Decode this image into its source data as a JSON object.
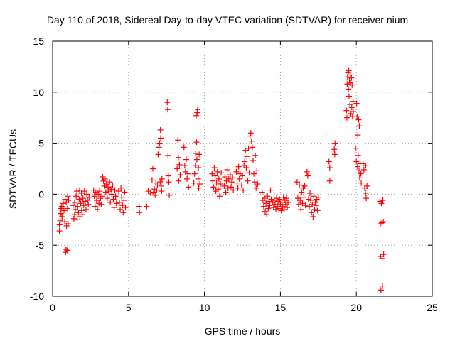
{
  "chart_data": {
    "type": "scatter",
    "title": "Day 110 of 2018, Sidereal Day-to-day VTEC variation (SDTVAR) for receiver nium",
    "xlabel": "GPS time / hours",
    "ylabel": "SDTVAR / TECUs",
    "xlim": [
      0,
      25
    ],
    "ylim": [
      -10,
      15
    ],
    "xticks": [
      0,
      5,
      10,
      15,
      20,
      25
    ],
    "yticks": [
      -10,
      -5,
      0,
      5,
      10,
      15
    ],
    "x_tick_labels": [
      "0",
      "5",
      "10",
      "15",
      "20",
      "25"
    ],
    "y_tick_labels": [
      "-10",
      "-5",
      "0",
      "5",
      "10",
      "15"
    ],
    "grid": true,
    "marker": "+",
    "series": [
      {
        "name": "SDTVAR",
        "color": "#ff0000",
        "points": [
          [
            0.45,
            -3.6
          ],
          [
            0.45,
            -3.0
          ],
          [
            0.5,
            -2.6
          ],
          [
            0.55,
            -1.9
          ],
          [
            0.55,
            -1.4
          ],
          [
            0.6,
            -1.2
          ],
          [
            0.62,
            -2.2
          ],
          [
            0.7,
            -0.9
          ],
          [
            0.75,
            -1.6
          ],
          [
            0.8,
            -2.7
          ],
          [
            0.82,
            -0.5
          ],
          [
            0.85,
            -5.7
          ],
          [
            0.88,
            -5.4
          ],
          [
            0.9,
            -0.8
          ],
          [
            0.92,
            -3.1
          ],
          [
            0.95,
            -5.5
          ],
          [
            0.98,
            -1.4
          ],
          [
            1.0,
            -0.2
          ],
          [
            1.02,
            -2.9
          ],
          [
            1.05,
            -0.6
          ],
          [
            1.35,
            -1.1
          ],
          [
            1.4,
            -2.4
          ],
          [
            1.45,
            -0.8
          ],
          [
            1.45,
            -2.0
          ],
          [
            1.5,
            -1.5
          ],
          [
            1.55,
            -0.2
          ],
          [
            1.6,
            0.3
          ],
          [
            1.62,
            -2.5
          ],
          [
            1.65,
            -1.2
          ],
          [
            1.7,
            -1.8
          ],
          [
            1.75,
            -0.5
          ],
          [
            1.78,
            0.4
          ],
          [
            1.8,
            -2.2
          ],
          [
            1.85,
            -0.9
          ],
          [
            1.9,
            0.1
          ],
          [
            1.92,
            -1.6
          ],
          [
            1.95,
            -2.0
          ],
          [
            2.0,
            -0.4
          ],
          [
            2.05,
            -1.1
          ],
          [
            2.1,
            0.3
          ],
          [
            2.15,
            -0.7
          ],
          [
            2.2,
            -1.5
          ],
          [
            2.25,
            0.0
          ],
          [
            2.3,
            -0.6
          ],
          [
            2.35,
            -1.0
          ],
          [
            2.4,
            -0.3
          ],
          [
            2.7,
            0.4
          ],
          [
            2.75,
            -0.2
          ],
          [
            2.8,
            -1.2
          ],
          [
            2.85,
            0.2
          ],
          [
            2.9,
            -0.6
          ],
          [
            2.95,
            -1.5
          ],
          [
            3.0,
            0.0
          ],
          [
            3.05,
            -0.9
          ],
          [
            3.1,
            0.3
          ],
          [
            3.15,
            -0.4
          ],
          [
            3.2,
            -1.0
          ],
          [
            3.25,
            -0.2
          ],
          [
            3.3,
            1.7
          ],
          [
            3.35,
            1.3
          ],
          [
            3.4,
            0.8
          ],
          [
            3.45,
            1.5
          ],
          [
            3.5,
            0.2
          ],
          [
            3.55,
            1.0
          ],
          [
            3.6,
            -0.4
          ],
          [
            3.65,
            0.7
          ],
          [
            3.7,
            0.3
          ],
          [
            3.75,
            1.2
          ],
          [
            3.8,
            -0.8
          ],
          [
            3.85,
            0.5
          ],
          [
            3.9,
            0.0
          ],
          [
            3.95,
            0.9
          ],
          [
            4.0,
            -0.5
          ],
          [
            4.05,
            -1.3
          ],
          [
            4.1,
            0.4
          ],
          [
            4.15,
            -0.2
          ],
          [
            4.2,
            -0.9
          ],
          [
            4.35,
            0.3
          ],
          [
            4.4,
            -0.8
          ],
          [
            4.45,
            -1.5
          ],
          [
            4.5,
            0.6
          ],
          [
            4.55,
            -0.3
          ],
          [
            4.6,
            -1.1
          ],
          [
            4.65,
            -1.8
          ],
          [
            4.7,
            -0.6
          ],
          [
            4.75,
            0.2
          ],
          [
            4.8,
            -1.3
          ],
          [
            5.7,
            -1.2
          ],
          [
            5.72,
            -1.8
          ],
          [
            6.2,
            -1.2
          ],
          [
            6.3,
            0.3
          ],
          [
            6.45,
            0.1
          ],
          [
            6.55,
            1.4
          ],
          [
            6.6,
            2.5
          ],
          [
            6.65,
            0.2
          ],
          [
            6.7,
            0.5
          ],
          [
            6.75,
            -0.1
          ],
          [
            6.8,
            1.1
          ],
          [
            6.85,
            0.4
          ],
          [
            6.9,
            0.9
          ],
          [
            6.95,
            3.9
          ],
          [
            7.0,
            4.6
          ],
          [
            7.05,
            5.0
          ],
          [
            7.08,
            1.2
          ],
          [
            7.1,
            6.3
          ],
          [
            7.12,
            5.5
          ],
          [
            7.15,
            0.8
          ],
          [
            7.18,
            0.3
          ],
          [
            7.2,
            1.5
          ],
          [
            7.55,
            9.0
          ],
          [
            7.58,
            8.3
          ],
          [
            7.6,
            3.8
          ],
          [
            7.62,
            1.8
          ],
          [
            7.65,
            1.2
          ],
          [
            7.68,
            -0.1
          ],
          [
            8.2,
            2.5
          ],
          [
            8.25,
            5.3
          ],
          [
            8.28,
            3.6
          ],
          [
            8.3,
            1.3
          ],
          [
            8.35,
            2.9
          ],
          [
            8.4,
            1.9
          ],
          [
            8.65,
            4.6
          ],
          [
            8.7,
            2.8
          ],
          [
            8.75,
            2.2
          ],
          [
            8.8,
            3.4
          ],
          [
            8.85,
            1.5
          ],
          [
            8.9,
            2.0
          ],
          [
            8.95,
            0.7
          ],
          [
            9.3,
            1.1
          ],
          [
            9.35,
            2.0
          ],
          [
            9.4,
            2.8
          ],
          [
            9.42,
            4.0
          ],
          [
            9.45,
            7.7
          ],
          [
            9.48,
            5.1
          ],
          [
            9.5,
            3.4
          ],
          [
            9.52,
            8.0
          ],
          [
            9.55,
            8.3
          ],
          [
            9.58,
            1.5
          ],
          [
            9.6,
            2.6
          ],
          [
            9.62,
            0.6
          ],
          [
            9.65,
            3.9
          ],
          [
            9.7,
            1.0
          ],
          [
            10.5,
            2.0
          ],
          [
            10.55,
            1.3
          ],
          [
            10.6,
            0.7
          ],
          [
            10.65,
            2.6
          ],
          [
            10.7,
            1.8
          ],
          [
            10.75,
            0.3
          ],
          [
            10.8,
            1.1
          ],
          [
            10.85,
            2.2
          ],
          [
            10.9,
            0.5
          ],
          [
            10.95,
            1.5
          ],
          [
            11.0,
            -0.2
          ],
          [
            11.05,
            1.0
          ],
          [
            11.1,
            2.1
          ],
          [
            11.3,
            0.8
          ],
          [
            11.35,
            1.7
          ],
          [
            11.4,
            0.2
          ],
          [
            11.45,
            1.3
          ],
          [
            11.5,
            2.4
          ],
          [
            11.55,
            0.6
          ],
          [
            11.6,
            1.5
          ],
          [
            11.7,
            1.9
          ],
          [
            11.75,
            0.7
          ],
          [
            11.8,
            1.2
          ],
          [
            11.85,
            1.6
          ],
          [
            11.9,
            0.4
          ],
          [
            12.1,
            2.2
          ],
          [
            12.15,
            1.1
          ],
          [
            12.2,
            0.6
          ],
          [
            12.25,
            2.7
          ],
          [
            12.3,
            1.5
          ],
          [
            12.35,
            2.0
          ],
          [
            12.45,
            0.9
          ],
          [
            12.5,
            1.8
          ],
          [
            12.55,
            0.4
          ],
          [
            12.6,
            2.8
          ],
          [
            12.65,
            3.2
          ],
          [
            12.7,
            4.3
          ],
          [
            12.75,
            2.6
          ],
          [
            12.8,
            3.7
          ],
          [
            12.85,
            1.3
          ],
          [
            12.9,
            4.5
          ],
          [
            12.95,
            2.1
          ],
          [
            13.0,
            5.7
          ],
          [
            13.05,
            6.0
          ],
          [
            13.1,
            5.2
          ],
          [
            13.15,
            4.6
          ],
          [
            13.2,
            3.3
          ],
          [
            13.25,
            2.0
          ],
          [
            13.3,
            1.2
          ],
          [
            13.35,
            3.8
          ],
          [
            13.4,
            0.6
          ],
          [
            13.45,
            2.3
          ],
          [
            13.5,
            1.0
          ],
          [
            13.8,
            0.2
          ],
          [
            13.85,
            -0.6
          ],
          [
            13.9,
            -1.2
          ],
          [
            13.95,
            -0.4
          ],
          [
            14.0,
            -1.7
          ],
          [
            14.05,
            -0.9
          ],
          [
            14.1,
            -2.0
          ],
          [
            14.15,
            -0.2
          ],
          [
            14.2,
            -1.4
          ],
          [
            14.25,
            -0.7
          ],
          [
            14.3,
            -1.1
          ],
          [
            14.35,
            0.4
          ],
          [
            14.4,
            -0.5
          ],
          [
            14.5,
            -0.8
          ],
          [
            14.55,
            -1.3
          ],
          [
            14.6,
            -0.6
          ],
          [
            14.65,
            -1.0
          ],
          [
            14.7,
            -1.5
          ],
          [
            14.75,
            -0.4
          ],
          [
            14.8,
            -1.2
          ],
          [
            14.85,
            -0.7
          ],
          [
            14.9,
            -1.4
          ],
          [
            14.95,
            -0.5
          ],
          [
            15.0,
            -1.0
          ],
          [
            15.05,
            -1.6
          ],
          [
            15.1,
            -0.8
          ],
          [
            15.15,
            -1.2
          ],
          [
            15.2,
            -0.3
          ],
          [
            15.25,
            -1.5
          ],
          [
            15.3,
            -0.6
          ],
          [
            15.35,
            -1.0
          ],
          [
            15.4,
            -0.4
          ],
          [
            15.45,
            -1.3
          ],
          [
            15.5,
            -0.8
          ],
          [
            16.1,
            1.2
          ],
          [
            16.15,
            -0.4
          ],
          [
            16.2,
            -1.0
          ],
          [
            16.25,
            0.9
          ],
          [
            16.3,
            -0.6
          ],
          [
            16.35,
            -1.5
          ],
          [
            16.4,
            0.2
          ],
          [
            16.45,
            -0.9
          ],
          [
            16.5,
            0.6
          ],
          [
            16.55,
            -0.3
          ],
          [
            16.6,
            0.8
          ],
          [
            16.65,
            -1.1
          ],
          [
            16.75,
            2.2
          ],
          [
            16.8,
            1.8
          ],
          [
            16.85,
            -0.5
          ],
          [
            16.9,
            -1.2
          ],
          [
            16.95,
            0.1
          ],
          [
            17.0,
            -0.6
          ],
          [
            17.05,
            -1.8
          ],
          [
            17.1,
            -1.0
          ],
          [
            17.15,
            -2.2
          ],
          [
            17.2,
            -0.2
          ],
          [
            17.25,
            -1.5
          ],
          [
            17.3,
            -0.8
          ],
          [
            17.35,
            -1.1
          ],
          [
            17.4,
            -0.5
          ],
          [
            17.45,
            -1.6
          ],
          [
            17.5,
            -0.3
          ],
          [
            18.2,
            3.2
          ],
          [
            18.25,
            2.6
          ],
          [
            18.25,
            1.3
          ],
          [
            18.55,
            4.4
          ],
          [
            18.58,
            3.9
          ],
          [
            18.6,
            5.0
          ],
          [
            19.35,
            8.2
          ],
          [
            19.38,
            7.5
          ],
          [
            19.4,
            10.8
          ],
          [
            19.42,
            11.5
          ],
          [
            19.45,
            11.9
          ],
          [
            19.48,
            10.3
          ],
          [
            19.5,
            12.1
          ],
          [
            19.52,
            9.6
          ],
          [
            19.55,
            11.2
          ],
          [
            19.58,
            8.8
          ],
          [
            19.6,
            11.7
          ],
          [
            19.62,
            10.9
          ],
          [
            19.65,
            7.9
          ],
          [
            19.68,
            11.4
          ],
          [
            19.7,
            8.5
          ],
          [
            19.72,
            10.7
          ],
          [
            19.75,
            7.6
          ],
          [
            19.78,
            9.1
          ],
          [
            19.8,
            8.1
          ],
          [
            19.95,
            4.5
          ],
          [
            20.0,
            3.2
          ],
          [
            20.02,
            8.9
          ],
          [
            20.05,
            7.6
          ],
          [
            20.08,
            2.7
          ],
          [
            20.1,
            5.8
          ],
          [
            20.12,
            3.8
          ],
          [
            20.15,
            7.3
          ],
          [
            20.18,
            2.3
          ],
          [
            20.2,
            6.7
          ],
          [
            20.22,
            1.6
          ],
          [
            20.25,
            3.0
          ],
          [
            20.3,
            2.0
          ],
          [
            20.32,
            1.1
          ],
          [
            20.45,
            3.0
          ],
          [
            20.5,
            2.4
          ],
          [
            20.55,
            0.6
          ],
          [
            20.6,
            0.1
          ],
          [
            20.62,
            2.8
          ],
          [
            20.65,
            -0.4
          ],
          [
            20.7,
            0.8
          ],
          [
            21.55,
            -0.7
          ],
          [
            21.58,
            -2.9
          ],
          [
            21.6,
            -6.1
          ],
          [
            21.62,
            -9.4
          ],
          [
            21.65,
            -0.9
          ],
          [
            21.68,
            -2.8
          ],
          [
            21.7,
            -6.3
          ],
          [
            21.72,
            -9.0
          ],
          [
            21.75,
            -0.6
          ],
          [
            21.78,
            -2.7
          ],
          [
            21.8,
            -5.9
          ]
        ]
      }
    ]
  }
}
